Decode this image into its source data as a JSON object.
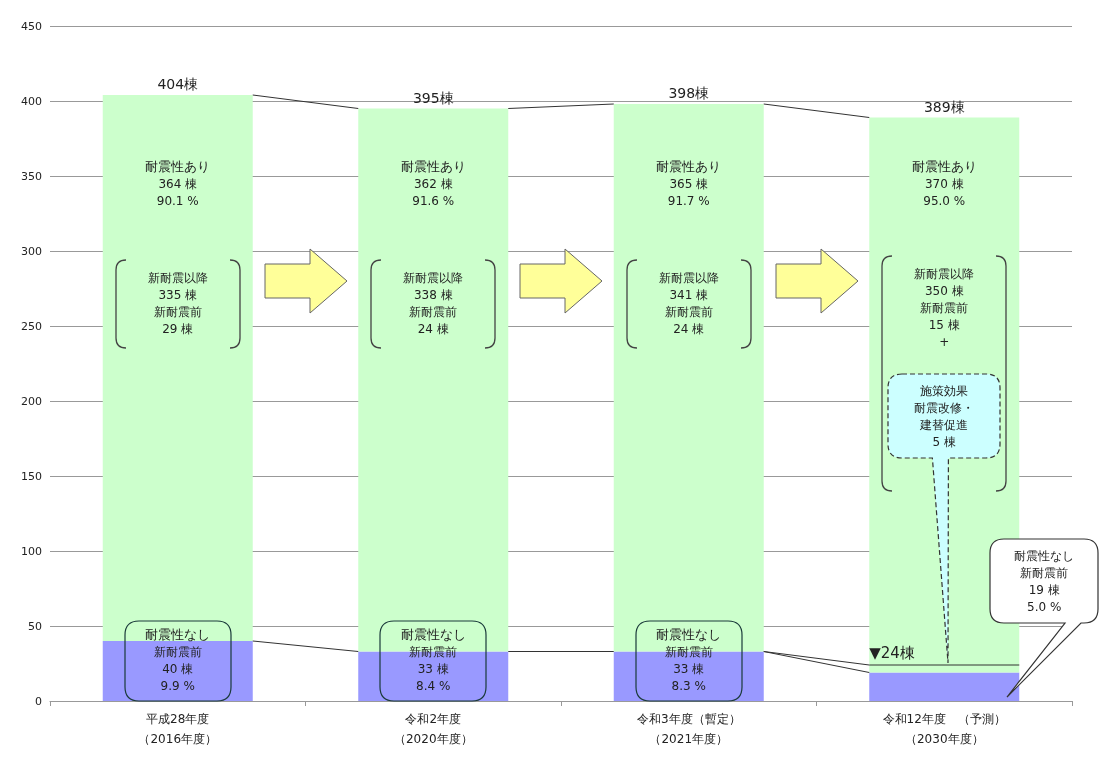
{
  "chart_data": {
    "type": "bar",
    "stacked": true,
    "categories": [
      "平成28年度（2016年度）",
      "令和2年度（2020年度）",
      "令和3年度（暫定）（2021年度）",
      "令和12年度　（予測）（2030年度）"
    ],
    "series": [
      {
        "color": "#9999ff",
        "values": [
          40,
          33,
          33,
          19
        ]
      },
      {
        "color": "#ccffcc",
        "values": [
          364,
          362,
          365,
          370
        ]
      }
    ],
    "totals": [
      "404棟",
      "395棟",
      "398棟",
      "389棟"
    ],
    "ref_lines": [
      {
        "axis": "y",
        "value": 24,
        "label": "▼24棟"
      }
    ],
    "ylim": [
      0,
      450
    ],
    "yticks": [
      0,
      50,
      100,
      150,
      200,
      250,
      300,
      350,
      400,
      450
    ],
    "grid": "y",
    "annotations": [
      "耐震性あり",
      "364 棟",
      "90.1 %",
      "新耐震以降",
      "335 棟",
      "新耐震前",
      "29 棟",
      "耐震性なし",
      "新耐震前",
      "40 棟",
      "9.9 %",
      "耐震性あり",
      "362 棟",
      "91.6 %",
      "新耐震以降",
      "338 棟",
      "新耐震前",
      "24 棟",
      "耐震性なし",
      "新耐震前",
      "33 棟",
      "8.4 %",
      "耐震性あり",
      "365 棟",
      "91.7 %",
      "新耐震以降",
      "341 棟",
      "新耐震前",
      "24 棟",
      "耐震性なし",
      "新耐震前",
      "33 棟",
      "8.3 %",
      "耐震性あり",
      "370 棟",
      "95.0 %",
      "新耐震以降",
      "350 棟",
      "新耐震前",
      "15 棟",
      "+",
      "施策効果",
      "耐震改修・",
      "建替促進",
      "5 棟",
      "耐震性なし",
      "新耐震前",
      "19 棟",
      "5.0 %"
    ]
  }
}
